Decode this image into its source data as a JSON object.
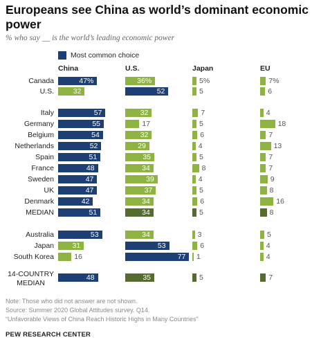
{
  "header": {
    "title": "Europeans see China as world’s dominant economic power",
    "subtitle": "% who say __ is the world’s leading economic power"
  },
  "legend": {
    "label": "Most common choice"
  },
  "colors": {
    "dark_blue": "#1e3f73",
    "green": "#8db342",
    "dark_green": "#556b2f"
  },
  "chart_data": {
    "type": "bar",
    "columns": [
      "China",
      "U.S.",
      "Japan",
      "EU"
    ],
    "rows": [
      {
        "country": "Canada",
        "values": [
          47,
          36,
          5,
          7
        ],
        "labels": [
          "47%",
          "36%",
          "5%",
          "7%"
        ],
        "top": 0,
        "median": false,
        "group": 1
      },
      {
        "country": "U.S.",
        "values": [
          32,
          52,
          5,
          6
        ],
        "labels": [
          "32",
          "52",
          "5",
          "6"
        ],
        "top": 1,
        "median": false,
        "group": 1
      },
      {
        "country": "Italy",
        "values": [
          57,
          32,
          7,
          4
        ],
        "labels": [
          "57",
          "32",
          "7",
          "4"
        ],
        "top": 0,
        "median": false,
        "group": 2
      },
      {
        "country": "Germany",
        "values": [
          55,
          17,
          5,
          18
        ],
        "labels": [
          "55",
          "17",
          "5",
          "18"
        ],
        "top": 0,
        "median": false,
        "group": 2
      },
      {
        "country": "Belgium",
        "values": [
          54,
          32,
          6,
          7
        ],
        "labels": [
          "54",
          "32",
          "6",
          "7"
        ],
        "top": 0,
        "median": false,
        "group": 2
      },
      {
        "country": "Netherlands",
        "values": [
          52,
          29,
          4,
          13
        ],
        "labels": [
          "52",
          "29",
          "4",
          "13"
        ],
        "top": 0,
        "median": false,
        "group": 2
      },
      {
        "country": "Spain",
        "values": [
          51,
          35,
          5,
          7
        ],
        "labels": [
          "51",
          "35",
          "5",
          "7"
        ],
        "top": 0,
        "median": false,
        "group": 2
      },
      {
        "country": "France",
        "values": [
          48,
          34,
          8,
          7
        ],
        "labels": [
          "48",
          "34",
          "8",
          "7"
        ],
        "top": 0,
        "median": false,
        "group": 2
      },
      {
        "country": "Sweden",
        "values": [
          47,
          39,
          4,
          9
        ],
        "labels": [
          "47",
          "39",
          "4",
          "9"
        ],
        "top": 0,
        "median": false,
        "group": 2
      },
      {
        "country": "UK",
        "values": [
          47,
          37,
          5,
          8
        ],
        "labels": [
          "47",
          "37",
          "5",
          "8"
        ],
        "top": 0,
        "median": false,
        "group": 2
      },
      {
        "country": "Denmark",
        "values": [
          42,
          34,
          6,
          16
        ],
        "labels": [
          "42",
          "34",
          "6",
          "16"
        ],
        "top": 0,
        "median": false,
        "group": 2
      },
      {
        "country": "MEDIAN",
        "values": [
          51,
          34,
          5,
          8
        ],
        "labels": [
          "51",
          "34",
          "5",
          "8"
        ],
        "top": 0,
        "median": true,
        "group": 2
      },
      {
        "country": "Australia",
        "values": [
          53,
          34,
          3,
          5
        ],
        "labels": [
          "53",
          "34",
          "3",
          "5"
        ],
        "top": 0,
        "median": false,
        "group": 3
      },
      {
        "country": "Japan",
        "values": [
          31,
          53,
          6,
          4
        ],
        "labels": [
          "31",
          "53",
          "6",
          "4"
        ],
        "top": 1,
        "median": false,
        "group": 3
      },
      {
        "country": "South Korea",
        "values": [
          16,
          77,
          1,
          4
        ],
        "labels": [
          "16",
          "77",
          "1",
          "4"
        ],
        "top": 1,
        "median": false,
        "group": 3
      },
      {
        "country": "14-COUNTRY MEDIAN",
        "values": [
          48,
          35,
          5,
          7
        ],
        "labels": [
          "48",
          "35",
          "5",
          "7"
        ],
        "top": 0,
        "median": true,
        "group": 4
      }
    ]
  },
  "notes": {
    "note": "Note: Those who did not answer are not shown.",
    "source": "Source: Summer 2020 Global Attitudes survey. Q14.",
    "report": "“Unfavorable Views of China Reach Historic Highs in Many Countries”"
  },
  "brand": "PEW RESEARCH CENTER"
}
